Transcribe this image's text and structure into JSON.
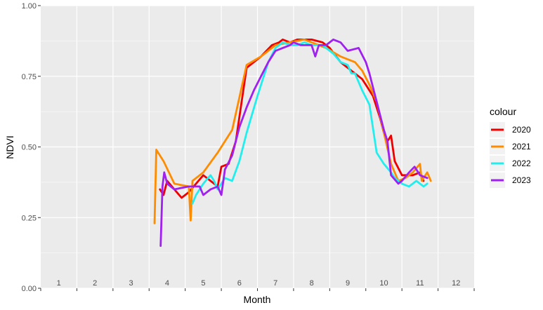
{
  "chart_data": {
    "type": "line",
    "xlabel": "Month",
    "ylabel": "NDVI",
    "xlim": [
      0.5,
      12.5
    ],
    "ylim": [
      0,
      1
    ],
    "y_ticks": [
      "0.00",
      "0.25",
      "0.50",
      "0.75",
      "1.00"
    ],
    "y_tick_values": [
      0,
      0.25,
      0.5,
      0.75,
      1
    ],
    "month_labels": [
      "1",
      "2",
      "3",
      "4",
      "5",
      "6",
      "7",
      "8",
      "9",
      "10",
      "11",
      "12"
    ],
    "grid": true,
    "legend_title": "colour",
    "legend_position": "right",
    "series": [
      {
        "name": "2020",
        "color": "#ee0000",
        "points": [
          [
            3.8,
            0.35
          ],
          [
            3.9,
            0.33
          ],
          [
            4.0,
            0.38
          ],
          [
            4.2,
            0.35
          ],
          [
            4.4,
            0.32
          ],
          [
            4.6,
            0.34
          ],
          [
            4.8,
            0.37
          ],
          [
            5.0,
            0.4
          ],
          [
            5.2,
            0.38
          ],
          [
            5.4,
            0.36
          ],
          [
            5.5,
            0.43
          ],
          [
            5.7,
            0.44
          ],
          [
            5.9,
            0.52
          ],
          [
            6.2,
            0.78
          ],
          [
            6.6,
            0.82
          ],
          [
            6.9,
            0.86
          ],
          [
            7.1,
            0.87
          ],
          [
            7.2,
            0.88
          ],
          [
            7.4,
            0.87
          ],
          [
            7.6,
            0.88
          ],
          [
            7.8,
            0.88
          ],
          [
            8.0,
            0.88
          ],
          [
            8.3,
            0.87
          ],
          [
            8.5,
            0.85
          ],
          [
            8.8,
            0.8
          ],
          [
            9.0,
            0.78
          ],
          [
            9.2,
            0.76
          ],
          [
            9.4,
            0.74
          ],
          [
            9.5,
            0.72
          ],
          [
            9.7,
            0.68
          ],
          [
            9.9,
            0.6
          ],
          [
            10.0,
            0.55
          ],
          [
            10.1,
            0.52
          ],
          [
            10.2,
            0.54
          ],
          [
            10.3,
            0.45
          ],
          [
            10.5,
            0.4
          ],
          [
            10.8,
            0.4
          ],
          [
            11.0,
            0.41
          ],
          [
            11.1,
            0.38
          ]
        ]
      },
      {
        "name": "2021",
        "color": "#ff8c00",
        "points": [
          [
            3.65,
            0.23
          ],
          [
            3.7,
            0.49
          ],
          [
            3.9,
            0.45
          ],
          [
            4.2,
            0.37
          ],
          [
            4.6,
            0.36
          ],
          [
            4.65,
            0.24
          ],
          [
            4.7,
            0.38
          ],
          [
            5.0,
            0.41
          ],
          [
            5.4,
            0.48
          ],
          [
            5.8,
            0.56
          ],
          [
            6.2,
            0.79
          ],
          [
            6.6,
            0.82
          ],
          [
            7.0,
            0.86
          ],
          [
            7.4,
            0.87
          ],
          [
            7.8,
            0.88
          ],
          [
            8.0,
            0.87
          ],
          [
            8.4,
            0.85
          ],
          [
            8.8,
            0.82
          ],
          [
            9.0,
            0.81
          ],
          [
            9.2,
            0.8
          ],
          [
            9.4,
            0.77
          ],
          [
            9.6,
            0.72
          ],
          [
            9.8,
            0.66
          ],
          [
            10.0,
            0.55
          ],
          [
            10.2,
            0.44
          ],
          [
            10.4,
            0.38
          ],
          [
            10.6,
            0.39
          ],
          [
            10.8,
            0.41
          ],
          [
            11.0,
            0.44
          ],
          [
            11.05,
            0.38
          ],
          [
            11.2,
            0.41
          ],
          [
            11.3,
            0.38
          ]
        ]
      },
      {
        "name": "2022",
        "color": "#22eeee",
        "points": [
          [
            4.7,
            0.3
          ],
          [
            4.8,
            0.33
          ],
          [
            5.0,
            0.37
          ],
          [
            5.2,
            0.4
          ],
          [
            5.3,
            0.38
          ],
          [
            5.4,
            0.35
          ],
          [
            5.6,
            0.39
          ],
          [
            5.8,
            0.38
          ],
          [
            6.0,
            0.45
          ],
          [
            6.2,
            0.55
          ],
          [
            6.5,
            0.68
          ],
          [
            6.8,
            0.8
          ],
          [
            7.0,
            0.85
          ],
          [
            7.2,
            0.87
          ],
          [
            7.4,
            0.86
          ],
          [
            7.6,
            0.86
          ],
          [
            7.8,
            0.87
          ],
          [
            8.0,
            0.86
          ],
          [
            8.3,
            0.86
          ],
          [
            8.6,
            0.83
          ],
          [
            8.8,
            0.8
          ],
          [
            9.0,
            0.79
          ],
          [
            9.1,
            0.76
          ],
          [
            9.2,
            0.76
          ],
          [
            9.4,
            0.7
          ],
          [
            9.6,
            0.65
          ],
          [
            9.8,
            0.48
          ],
          [
            10.0,
            0.44
          ],
          [
            10.2,
            0.41
          ],
          [
            10.3,
            0.39
          ],
          [
            10.5,
            0.37
          ],
          [
            10.7,
            0.36
          ],
          [
            10.9,
            0.38
          ],
          [
            11.1,
            0.36
          ],
          [
            11.2,
            0.37
          ]
        ]
      },
      {
        "name": "2023",
        "color": "#a020f0",
        "points": [
          [
            3.82,
            0.15
          ],
          [
            3.87,
            0.36
          ],
          [
            3.92,
            0.41
          ],
          [
            4.0,
            0.37
          ],
          [
            4.2,
            0.35
          ],
          [
            4.6,
            0.36
          ],
          [
            4.9,
            0.36
          ],
          [
            5.0,
            0.33
          ],
          [
            5.2,
            0.35
          ],
          [
            5.4,
            0.36
          ],
          [
            5.5,
            0.33
          ],
          [
            5.6,
            0.42
          ],
          [
            5.8,
            0.47
          ],
          [
            6.0,
            0.57
          ],
          [
            6.2,
            0.64
          ],
          [
            6.4,
            0.7
          ],
          [
            6.6,
            0.75
          ],
          [
            6.8,
            0.8
          ],
          [
            7.0,
            0.84
          ],
          [
            7.2,
            0.85
          ],
          [
            7.4,
            0.86
          ],
          [
            7.5,
            0.87
          ],
          [
            7.7,
            0.86
          ],
          [
            7.9,
            0.86
          ],
          [
            8.0,
            0.86
          ],
          [
            8.1,
            0.82
          ],
          [
            8.2,
            0.86
          ],
          [
            8.4,
            0.86
          ],
          [
            8.6,
            0.88
          ],
          [
            8.8,
            0.87
          ],
          [
            9.0,
            0.84
          ],
          [
            9.3,
            0.85
          ],
          [
            9.5,
            0.8
          ],
          [
            9.6,
            0.76
          ],
          [
            9.8,
            0.66
          ],
          [
            10.0,
            0.56
          ],
          [
            10.1,
            0.52
          ],
          [
            10.2,
            0.4
          ],
          [
            10.4,
            0.37
          ],
          [
            10.5,
            0.38
          ],
          [
            10.7,
            0.41
          ],
          [
            10.85,
            0.43
          ],
          [
            11.0,
            0.4
          ],
          [
            11.2,
            0.39
          ]
        ]
      }
    ]
  }
}
